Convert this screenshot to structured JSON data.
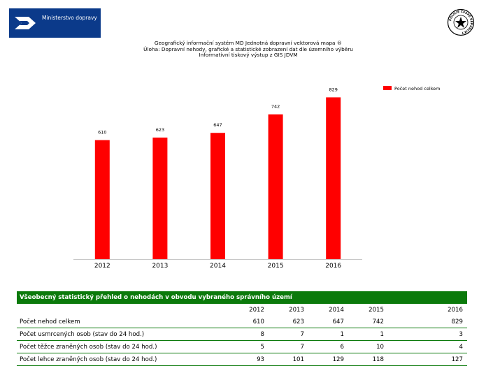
{
  "header": {
    "brand": "Ministerstvo dopravy",
    "police_seal_text": "POLICIE ČESKÉ REPUBLIKY",
    "lines": [
      "Geografický informační systém MD Jednotná dopravní vektorová mapa ®",
      "Úloha: Dopravní nehody, grafické a statistické zobrazení dat dle územního výběru",
      "Informativní tiskový výstup z GIS JDVM"
    ]
  },
  "colors": {
    "bar": "#ff0000",
    "brand_blue": "#0b3a8a",
    "table_green": "#0b7a0b"
  },
  "chart_data": {
    "type": "bar",
    "categories": [
      "2012",
      "2013",
      "2014",
      "2015",
      "2016"
    ],
    "series": [
      {
        "name": "Počet nehod celkem",
        "values": [
          610,
          623,
          647,
          742,
          829
        ]
      }
    ],
    "ylim": [
      0,
      970
    ],
    "legend": "top-right",
    "grid": false,
    "title": "",
    "xlabel": "",
    "ylabel": ""
  },
  "table": {
    "title": "Všeobecný statistický přehled o nehodách v obvodu vybraného správního území",
    "years": [
      "2012",
      "2013",
      "2014",
      "2015",
      "2016"
    ],
    "rows": [
      {
        "label": "Počet nehod celkem",
        "values": [
          "610",
          "623",
          "647",
          "742",
          "829"
        ]
      },
      {
        "label": "Počet usmrcených osob (stav do 24 hod.)",
        "values": [
          "8",
          "7",
          "1",
          "1",
          "3"
        ]
      },
      {
        "label": "Počet těžce zraněných osob (stav do 24 hod.)",
        "values": [
          "5",
          "7",
          "6",
          "10",
          "4"
        ]
      },
      {
        "label": "Počet lehce zraněných osob (stav do 24 hod.)",
        "values": [
          "93",
          "101",
          "129",
          "118",
          "127"
        ]
      }
    ]
  }
}
